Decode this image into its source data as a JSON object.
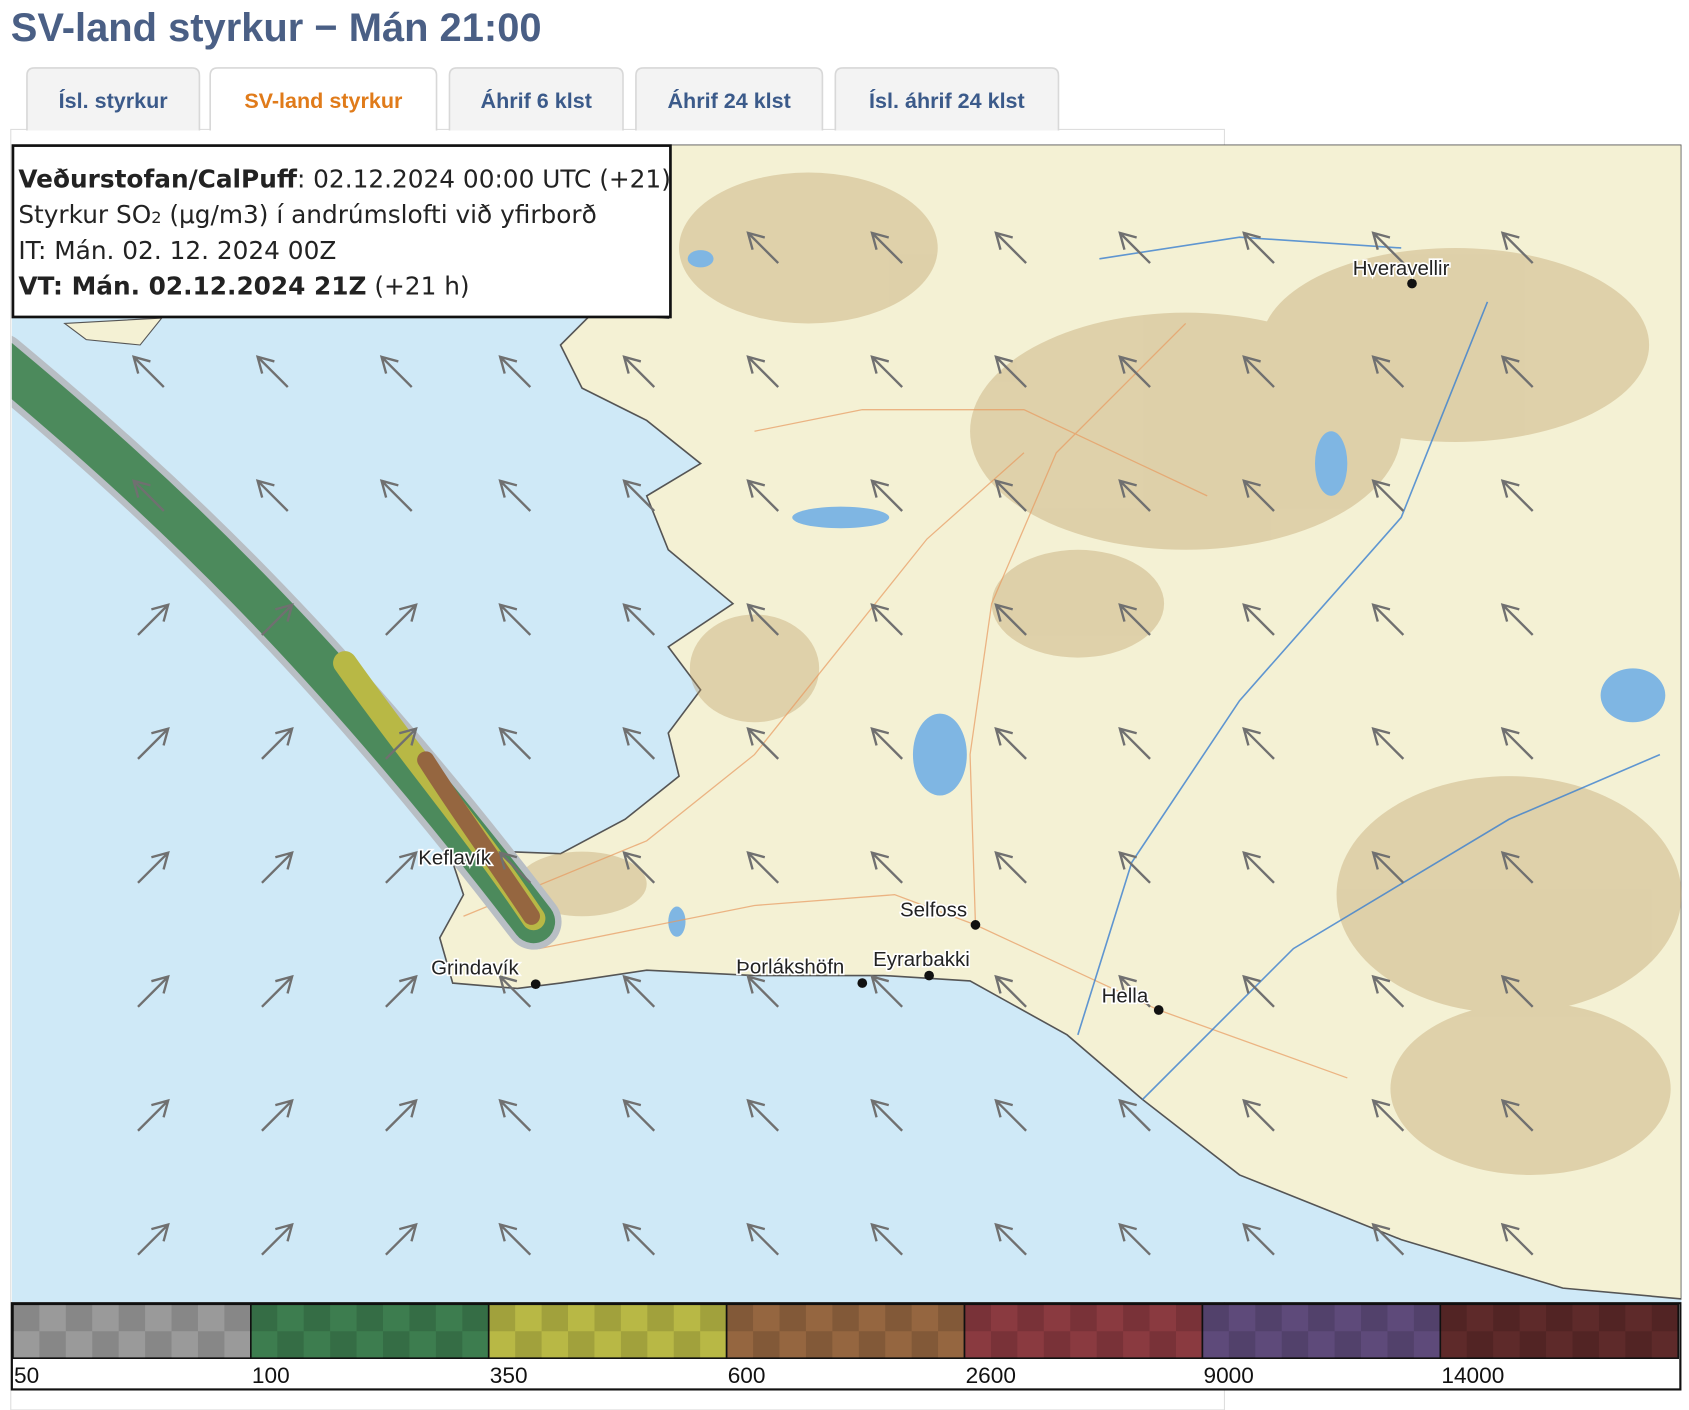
{
  "title": "SV-land styrkur − Mán 21:00",
  "tabs": [
    "Ísl. styrkur",
    "SV-land styrkur",
    "Áhrif 6 klst",
    "Áhrif 24 klst",
    "Ísl. áhrif 24 klst"
  ],
  "active_tab": 1,
  "info_box": {
    "lines": [
      [
        {
          "text": "Veðurstofan/CalPuff",
          "bold": true
        },
        {
          "text": ": 02.12.2024 00:00 UTC (+21)"
        }
      ],
      [
        {
          "text": "Styrkur SO"
        },
        {
          "text": "2",
          "sub": true
        },
        {
          "text": " (μg/m3) í andrúmslofti við yfirborð"
        }
      ],
      [
        {
          "text": "IT: Mán. 02. 12. 2024 00Z"
        }
      ],
      [
        {
          "text": "VT: Mán. 02.12.2024 21Z",
          "bold": true
        },
        {
          "text": " (+21 h)"
        }
      ]
    ]
  },
  "places": [
    "Hveravellir",
    "Keflavík",
    "Grindavík",
    "Þorlákshöfn",
    "Selfoss",
    "Eyrarbakki",
    "Hella"
  ],
  "legend": {
    "labels": [
      50,
      100,
      350,
      600,
      2600,
      9000,
      14000
    ],
    "colors": [
      "#9a9a9a",
      "#3d7d4f",
      "#b8b845",
      "#956640",
      "#8a3a40",
      "#5e4a7a",
      "#5e2a2a"
    ]
  }
}
